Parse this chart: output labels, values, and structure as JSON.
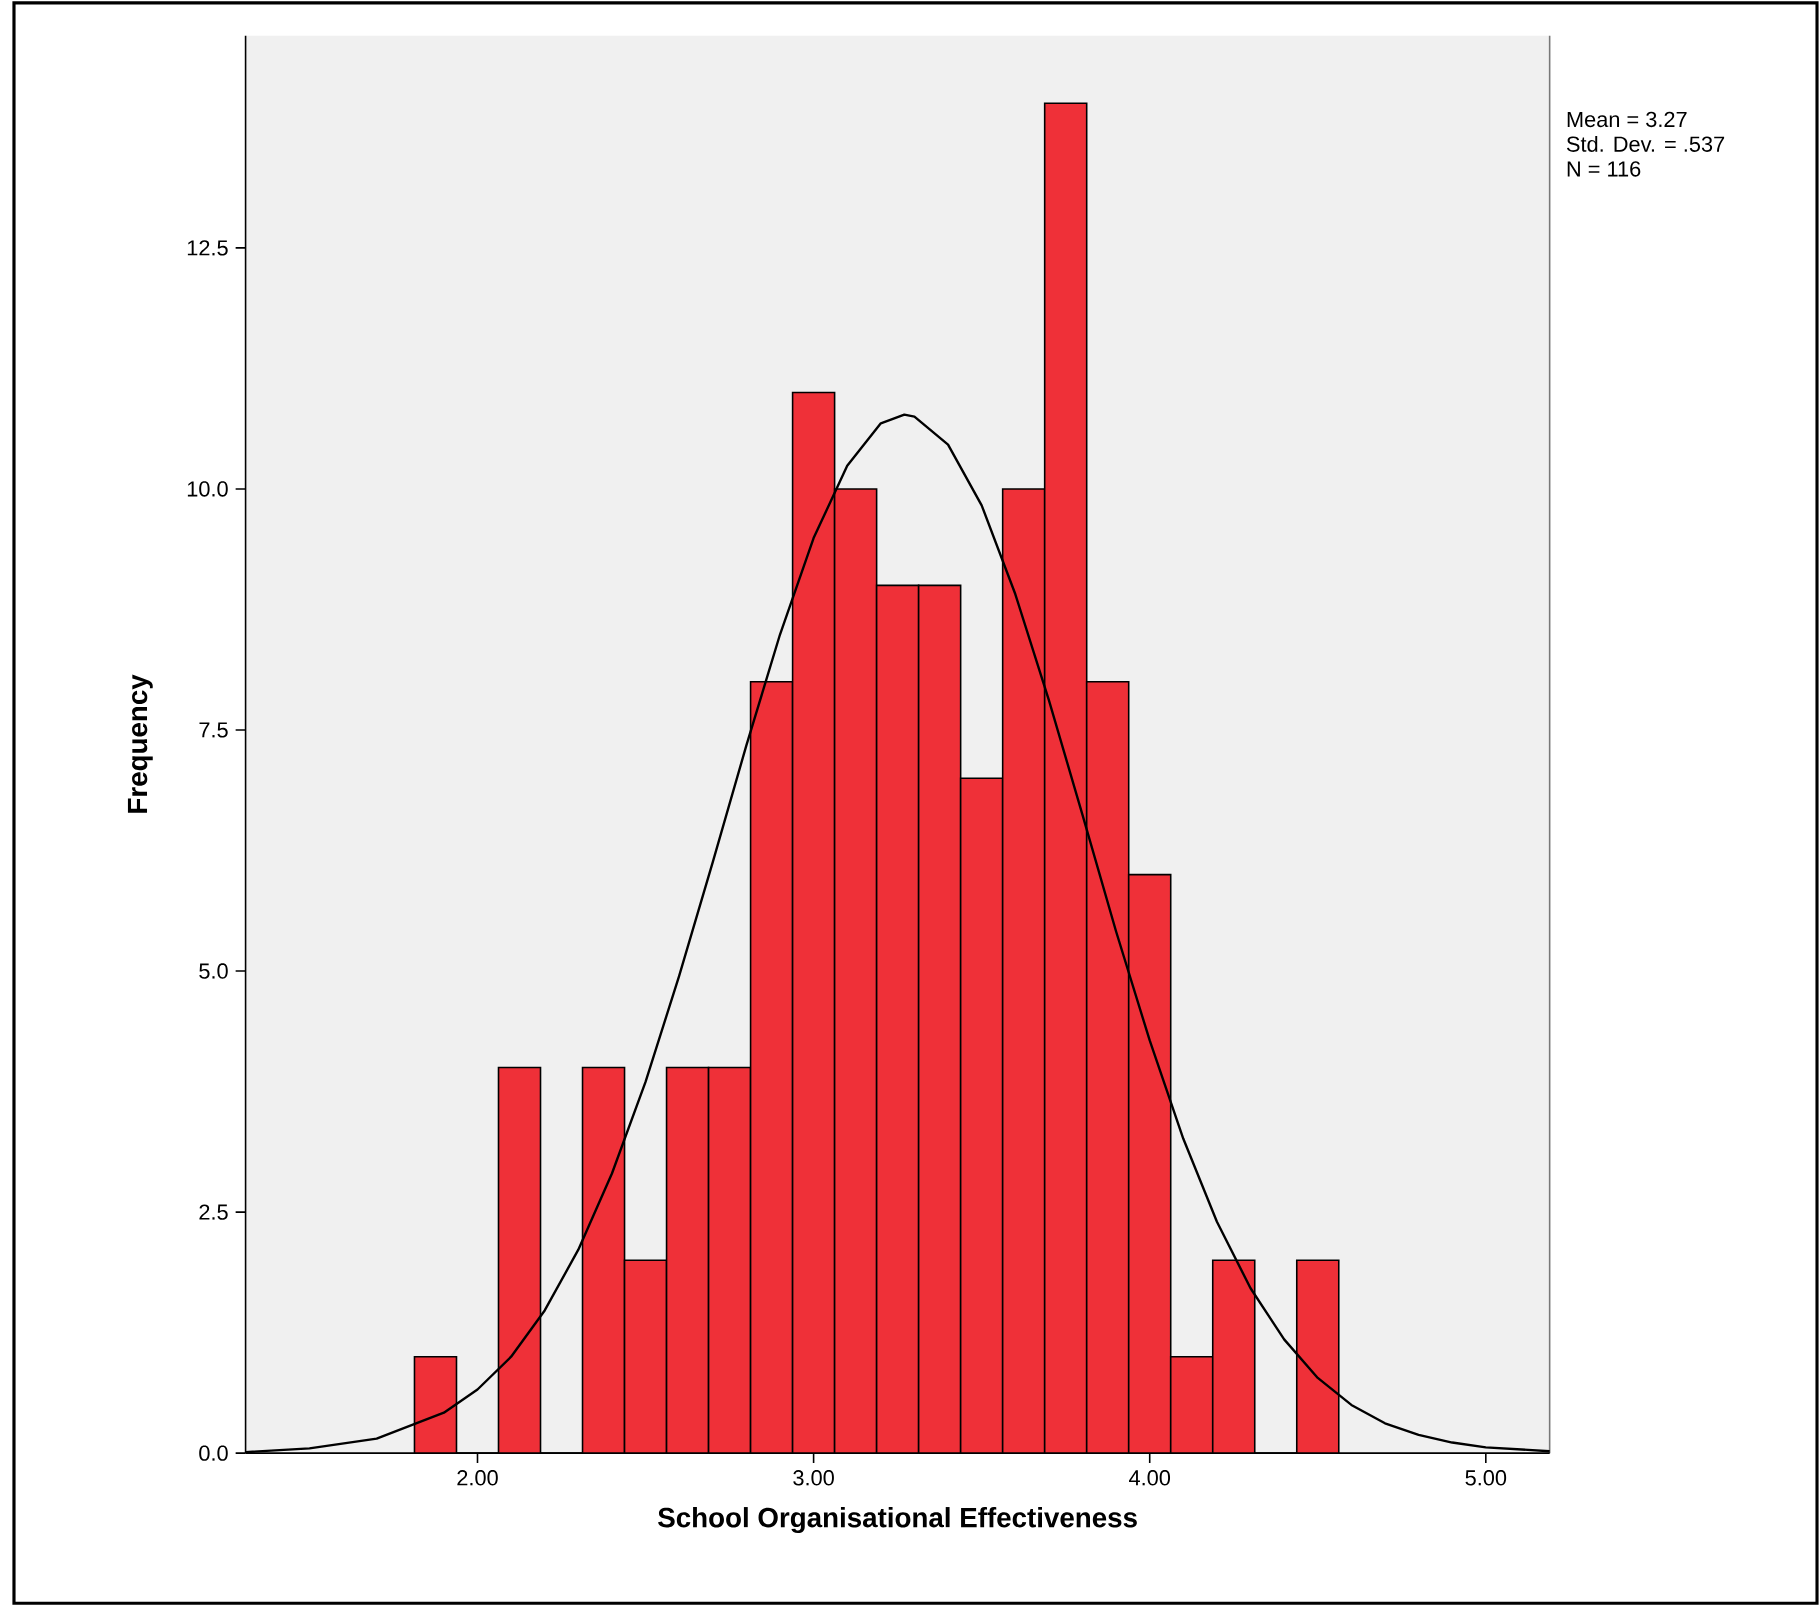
{
  "chart_data": {
    "type": "histogram",
    "xlabel": "School Organisational Effectiveness",
    "ylabel": "Frequency",
    "annotations": [
      "Mean = 3.27",
      "Std. Dev. = .537",
      "N = 116"
    ],
    "xlim": [
      1.31,
      5.19
    ],
    "ylim": [
      0,
      14.7
    ],
    "xticks": [
      {
        "value": 2,
        "label": "2.00"
      },
      {
        "value": 3,
        "label": "3.00"
      },
      {
        "value": 4,
        "label": "4.00"
      },
      {
        "value": 5,
        "label": "5.00"
      }
    ],
    "yticks": [
      {
        "value": 0,
        "label": "0.0"
      },
      {
        "value": 2.5,
        "label": "2.5"
      },
      {
        "value": 5,
        "label": "5.0"
      },
      {
        "value": 7.5,
        "label": "7.5"
      },
      {
        "value": 10,
        "label": "10.0"
      },
      {
        "value": 12.5,
        "label": "12.5"
      }
    ],
    "series": [
      {
        "type": "histogram",
        "color": "#ef3038",
        "bins": [
          1.8125,
          1.9375,
          2.0625,
          2.1875,
          2.3125,
          2.4375,
          2.5625,
          2.6875,
          2.8125,
          2.9375,
          3.0625,
          3.1875,
          3.3125,
          3.4375,
          3.5625,
          3.6875,
          3.8125,
          3.9375,
          4.0625,
          4.1875,
          4.3125,
          4.4375,
          4.5625
        ],
        "values": [
          1,
          0,
          4,
          0,
          4,
          2,
          4,
          4,
          8,
          11,
          10,
          9,
          9,
          7,
          10,
          14,
          8,
          6,
          1,
          2,
          0,
          2
        ]
      },
      {
        "type": "line",
        "color": "#000000",
        "x": [
          1.31,
          1.5,
          1.7,
          1.9,
          2.0,
          2.1,
          2.2,
          2.3,
          2.4,
          2.5,
          2.6,
          2.7,
          2.8,
          2.9,
          3.0,
          3.1,
          3.2,
          3.27,
          3.3,
          3.4,
          3.5,
          3.6,
          3.7,
          3.8,
          3.9,
          4.0,
          4.1,
          4.2,
          4.3,
          4.4,
          4.5,
          4.6,
          4.7,
          4.8,
          4.9,
          5.0,
          5.19
        ],
        "values": [
          0.01,
          0.05,
          0.15,
          0.42,
          0.66,
          1.0,
          1.48,
          2.11,
          2.9,
          3.85,
          4.95,
          6.13,
          7.34,
          8.49,
          9.49,
          10.24,
          10.68,
          10.77,
          10.75,
          10.46,
          9.83,
          8.91,
          7.81,
          6.62,
          5.41,
          4.28,
          3.26,
          2.4,
          1.71,
          1.18,
          0.78,
          0.5,
          0.31,
          0.19,
          0.11,
          0.06,
          0.02
        ]
      }
    ]
  }
}
